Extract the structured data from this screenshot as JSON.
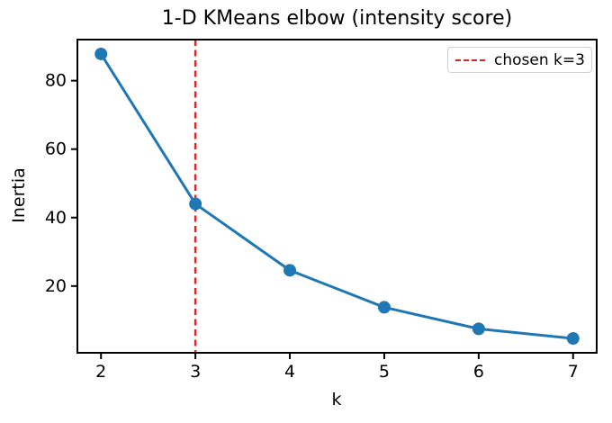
{
  "chart_data": {
    "type": "line",
    "title": "1-D KMeans elbow (intensity score)",
    "xlabel": "k",
    "ylabel": "Inertia",
    "x": [
      2,
      3,
      4,
      5,
      6,
      7
    ],
    "series": [
      {
        "name": "inertia",
        "values": [
          87.8,
          44.0,
          24.6,
          13.8,
          7.5,
          4.7
        ]
      }
    ],
    "xticks": [
      2,
      3,
      4,
      5,
      6,
      7
    ],
    "yticks": [
      20,
      40,
      60,
      80
    ],
    "xlim": [
      1.75,
      7.25
    ],
    "ylim": [
      0.5,
      92
    ],
    "grid": false,
    "vline": {
      "x": 3,
      "style": "dashed"
    },
    "legend": {
      "position": "upper right",
      "entries": [
        {
          "label": "chosen k=3",
          "style": "dashed"
        }
      ]
    },
    "colors": {
      "line": "#1f77b4",
      "marker": "#1f77b4",
      "vline": "#d62728",
      "spine": "#000000",
      "text": "#000000",
      "legend_border": "#d0d0d0"
    }
  }
}
